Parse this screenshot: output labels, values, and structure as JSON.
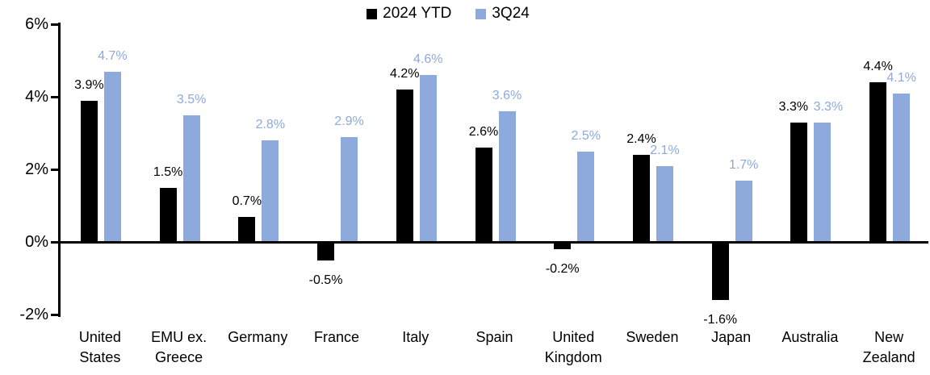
{
  "chart_data": {
    "type": "bar",
    "title": "",
    "categories": [
      "United States",
      "EMU ex. Greece",
      "Germany",
      "France",
      "Italy",
      "Spain",
      "United Kingdom",
      "Sweden",
      "Japan",
      "Australia",
      "New Zealand"
    ],
    "series": [
      {
        "name": "2024 YTD",
        "color": "#000000",
        "values": [
          3.9,
          1.5,
          0.7,
          -0.5,
          4.2,
          2.6,
          -0.2,
          2.4,
          -1.6,
          3.3,
          4.4
        ],
        "labels": [
          "3.9%",
          "1.5%",
          "0.7%",
          "-0.5%",
          "4.2%",
          "2.6%",
          "-0.2%",
          "2.4%",
          "-1.6%",
          "3.3%",
          "4.4%"
        ]
      },
      {
        "name": "3Q24",
        "color": "#8EA9DB",
        "values": [
          4.7,
          3.5,
          2.8,
          2.9,
          4.6,
          3.6,
          2.5,
          2.1,
          1.7,
          3.3,
          4.1
        ],
        "labels": [
          "4.7%",
          "3.5%",
          "2.8%",
          "2.9%",
          "4.6%",
          "3.6%",
          "2.5%",
          "2.1%",
          "1.7%",
          "3.3%",
          "4.1%"
        ]
      }
    ],
    "y_axis": {
      "tick_labels": [
        "6%",
        "4%",
        "2%",
        "0%",
        "-2%"
      ],
      "tick_values": [
        6,
        4,
        2,
        0,
        -2
      ],
      "min": -2,
      "max": 6,
      "unit": "%"
    },
    "legend": {
      "position": "top",
      "entries": [
        "2024 YTD",
        "3Q24"
      ]
    },
    "grid": false,
    "data_labels": "outside-end"
  }
}
